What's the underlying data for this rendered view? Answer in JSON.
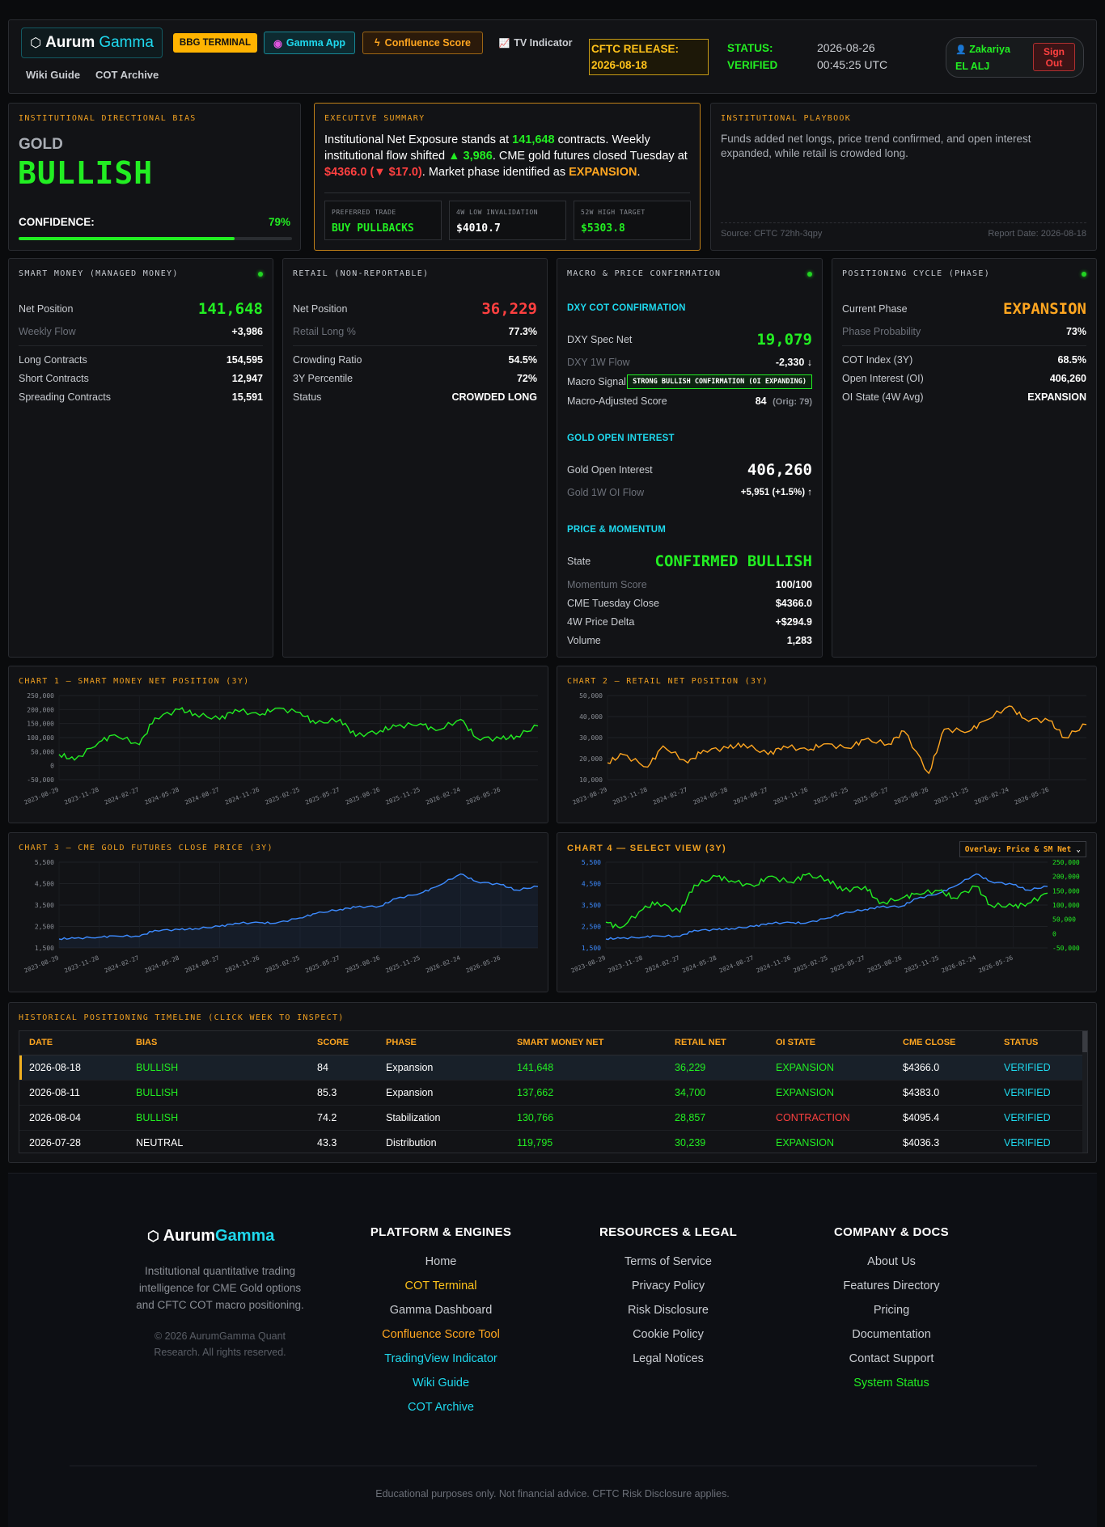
{
  "header": {
    "logo_a": "Aurum",
    "logo_b": "Gamma",
    "nav": [
      "BBG TERMINAL",
      "Gamma App",
      "Confluence Score",
      "TV Indicator"
    ],
    "links": [
      "Wiki Guide",
      "COT Archive"
    ],
    "cftc_label": "CFTC RELEASE:",
    "cftc_date": "2026-08-18",
    "status_label": "STATUS:",
    "status_value": "VERIFIED",
    "date": "2026-08-26",
    "time": "00:45:25 UTC",
    "user_first": "Zakariya",
    "user_last": "EL ALJ",
    "signout_1": "Sign",
    "signout_2": "Out"
  },
  "bias": {
    "title": "INSTITUTIONAL DIRECTIONAL BIAS",
    "asset": "GOLD",
    "value": "BULLISH",
    "confidence_label": "CONFIDENCE:",
    "confidence": "79%",
    "confidence_frac": 0.79
  },
  "summary": {
    "title": "EXECUTIVE SUMMARY",
    "t1": "Institutional Net Exposure stands at ",
    "net": "141,648",
    "t2": " contracts. Weekly institutional flow shifted ",
    "flow": "▲ 3,986",
    "t3": ". CME gold futures closed Tuesday at ",
    "close": "$4366.0 (▼ $17.0)",
    "t4": ". Market phase identified as ",
    "phase": "EXPANSION",
    "t5": ".",
    "boxes": [
      {
        "label": "PREFERRED TRADE",
        "value": "BUY PULLBACKS"
      },
      {
        "label": "4W LOW INVALIDATION",
        "value": "$4010.7"
      },
      {
        "label": "52W HIGH TARGET",
        "value": "$5303.8"
      }
    ]
  },
  "playbook": {
    "title": "INSTITUTIONAL PLAYBOOK",
    "text": "Funds added net longs, price trend confirmed, and open interest expanded, while retail is crowded long.",
    "source": "Source: CFTC 72hh-3qpy",
    "report": "Report Date: 2026-08-18"
  },
  "smart": {
    "title": "SMART MONEY (MANAGED MONEY)",
    "net_label": "Net Position",
    "net": "141,648",
    "flow_label": "Weekly Flow",
    "flow": "+3,986",
    "rows": [
      {
        "k": "Long Contracts",
        "v": "154,595"
      },
      {
        "k": "Short Contracts",
        "v": "12,947"
      },
      {
        "k": "Spreading Contracts",
        "v": "15,591"
      }
    ]
  },
  "retail": {
    "title": "RETAIL (NON-REPORTABLE)",
    "net_label": "Net Position",
    "net": "36,229",
    "long_label": "Retail Long %",
    "long": "77.3%",
    "rows": [
      {
        "k": "Crowding Ratio",
        "v": "54.5%"
      },
      {
        "k": "3Y Percentile",
        "v": "72%"
      },
      {
        "k": "Status",
        "v": "CROWDED LONG"
      }
    ]
  },
  "macro": {
    "title": "MACRO & PRICE CONFIRMATION",
    "dxy_title": "DXY COT CONFIRMATION",
    "dxy_net_label": "DXY Spec Net",
    "dxy_net": "19,079",
    "dxy_flow_label": "DXY 1W Flow",
    "dxy_flow": "-2,330 ↓",
    "signal_label": "Macro Signal",
    "signal": "STRONG BULLISH CONFIRMATION (OI EXPANDING)",
    "adj_label": "Macro-Adjusted Score",
    "adj": "84",
    "adj_orig": "(Orig: 79)",
    "oi_title": "GOLD OPEN INTEREST",
    "oi_label": "Gold Open Interest",
    "oi": "406,260",
    "oi_flow_label": "Gold 1W OI Flow",
    "oi_flow": "+5,951 (+1.5%) ↑",
    "pm_title": "PRICE & MOMENTUM",
    "state_label": "State",
    "state": "CONFIRMED BULLISH",
    "rows": [
      {
        "k": "Momentum Score",
        "v": "100/100"
      },
      {
        "k": "CME Tuesday Close",
        "v": "$4366.0"
      },
      {
        "k": "4W Price Delta",
        "v": "+$294.9"
      },
      {
        "k": "Volume",
        "v": "1,283"
      }
    ]
  },
  "cycle": {
    "title": "POSITIONING CYCLE (PHASE)",
    "phase_label": "Current Phase",
    "phase": "EXPANSION",
    "prob_label": "Phase Probability",
    "prob": "73%",
    "rows": [
      {
        "k": "COT Index (3Y)",
        "v": "68.5%"
      },
      {
        "k": "Open Interest (OI)",
        "v": "406,260"
      },
      {
        "k": "OI State (4W Avg)",
        "v": "EXPANSION"
      }
    ]
  },
  "chart_data": [
    {
      "type": "line",
      "title": "CHART 1 — SMART MONEY NET POSITION (3Y)",
      "ylim": [
        -50000,
        250000
      ],
      "ytick_labels": [
        "250,000",
        "200,000",
        "150,000",
        "100,000",
        "50,000",
        "0",
        "-50,000"
      ],
      "xtick_labels": [
        "2023-08-29",
        "2023-11-28",
        "2024-02-27",
        "2024-05-28",
        "2024-08-27",
        "2024-11-26",
        "2025-02-25",
        "2025-05-27",
        "2025-08-26",
        "2025-11-25",
        "2026-02-24",
        "2026-05-26"
      ],
      "x": [
        "2023-08-29",
        "2023-10-03",
        "2023-11-28",
        "2024-01-02",
        "2024-02-27",
        "2024-04-02",
        "2024-05-28",
        "2024-07-02",
        "2024-08-27",
        "2024-10-01",
        "2024-11-26",
        "2024-12-31",
        "2025-02-25",
        "2025-04-01",
        "2025-05-27",
        "2025-07-01",
        "2025-08-26",
        "2025-09-30",
        "2025-11-25",
        "2025-12-30",
        "2026-02-24",
        "2026-03-31",
        "2026-05-26",
        "2026-06-30",
        "2026-08-18"
      ],
      "series": [
        {
          "color": "#22ee22",
          "values": [
            40000,
            20000,
            85000,
            110000,
            75000,
            170000,
            200000,
            185000,
            165000,
            200000,
            180000,
            205000,
            190000,
            150000,
            165000,
            105000,
            125000,
            140000,
            150000,
            125000,
            165000,
            100000,
            95000,
            105000,
            141648
          ]
        }
      ]
    },
    {
      "type": "line",
      "title": "CHART 2 — RETAIL NET POSITION (3Y)",
      "ylim": [
        10000,
        50000
      ],
      "ytick_labels": [
        "50,000",
        "40,000",
        "30,000",
        "20,000",
        "10,000"
      ],
      "xtick_labels": [
        "2023-08-29",
        "2023-11-28",
        "2024-02-27",
        "2024-05-28",
        "2024-08-27",
        "2024-11-26",
        "2025-02-25",
        "2025-05-27",
        "2025-08-26",
        "2025-11-25",
        "2026-02-24",
        "2026-05-26"
      ],
      "x": [
        "2023-08-29",
        "2023-10-03",
        "2023-11-28",
        "2024-01-02",
        "2024-02-27",
        "2024-04-02",
        "2024-05-28",
        "2024-07-02",
        "2024-08-27",
        "2024-10-01",
        "2024-11-26",
        "2024-12-31",
        "2025-02-25",
        "2025-04-01",
        "2025-05-27",
        "2025-07-01",
        "2025-08-26",
        "2025-09-30",
        "2025-11-25",
        "2025-12-30",
        "2026-02-24",
        "2026-03-31",
        "2026-05-26",
        "2026-06-30",
        "2026-08-18"
      ],
      "series": [
        {
          "color": "#ffa620",
          "values": [
            18000,
            22000,
            16000,
            26000,
            18000,
            24000,
            25000,
            27000,
            22000,
            26000,
            24000,
            27000,
            25000,
            29000,
            27000,
            33000,
            13000,
            34000,
            33000,
            38000,
            45000,
            39000,
            38000,
            30000,
            36229
          ]
        }
      ]
    },
    {
      "type": "area",
      "title": "CHART 3 — CME GOLD FUTURES CLOSE PRICE (3Y)",
      "ylim": [
        1500,
        5500
      ],
      "ytick_labels": [
        "5,500",
        "4,500",
        "3,500",
        "2,500",
        "1,500"
      ],
      "xtick_labels": [
        "2023-08-29",
        "2023-11-28",
        "2024-02-27",
        "2024-05-28",
        "2024-08-27",
        "2024-11-26",
        "2025-02-25",
        "2025-05-27",
        "2025-08-26",
        "2025-11-25",
        "2026-02-24",
        "2026-05-26"
      ],
      "x": [
        "2023-08-29",
        "2023-10-03",
        "2023-11-28",
        "2024-01-02",
        "2024-02-27",
        "2024-04-02",
        "2024-05-28",
        "2024-07-02",
        "2024-08-27",
        "2024-10-01",
        "2024-11-26",
        "2024-12-31",
        "2025-02-25",
        "2025-04-01",
        "2025-05-27",
        "2025-07-01",
        "2025-08-26",
        "2025-09-30",
        "2025-11-25",
        "2025-12-30",
        "2026-02-24",
        "2026-03-31",
        "2026-05-26",
        "2026-06-30",
        "2026-08-18"
      ],
      "series": [
        {
          "color": "#3d8bff",
          "values": [
            1920,
            1950,
            2000,
            2060,
            2040,
            2320,
            2350,
            2400,
            2500,
            2650,
            2680,
            2650,
            2900,
            3100,
            3300,
            3400,
            3450,
            3800,
            4050,
            4350,
            4950,
            4600,
            4450,
            4200,
            4366
          ]
        }
      ]
    },
    {
      "type": "line",
      "title": "CHART 4 — SELECT VIEW (3Y)",
      "overlay": "Overlay: Price & SM Net",
      "ylim_left": [
        1500,
        5500
      ],
      "ylim_right": [
        -50000,
        250000
      ],
      "ytick_left": [
        "5,500",
        "4,500",
        "3,500",
        "2,500",
        "1,500"
      ],
      "ytick_right": [
        "250,000",
        "200,000",
        "150,000",
        "100,000",
        "50,000",
        "0",
        "-50,000"
      ],
      "xtick_labels": [
        "2023-08-29",
        "2023-11-28",
        "2024-02-27",
        "2024-05-28",
        "2024-08-27",
        "2024-11-26",
        "2025-02-25",
        "2025-05-27",
        "2025-08-26",
        "2025-11-25",
        "2026-02-24",
        "2026-05-26"
      ],
      "x": [
        "2023-08-29",
        "2023-10-03",
        "2023-11-28",
        "2024-01-02",
        "2024-02-27",
        "2024-04-02",
        "2024-05-28",
        "2024-07-02",
        "2024-08-27",
        "2024-10-01",
        "2024-11-26",
        "2024-12-31",
        "2025-02-25",
        "2025-04-01",
        "2025-05-27",
        "2025-07-01",
        "2025-08-26",
        "2025-09-30",
        "2025-11-25",
        "2025-12-30",
        "2026-02-24",
        "2026-03-31",
        "2026-05-26",
        "2026-06-30",
        "2026-08-18"
      ],
      "series": [
        {
          "color": "#3d8bff",
          "values": [
            1920,
            1950,
            2000,
            2060,
            2040,
            2320,
            2350,
            2400,
            2500,
            2650,
            2680,
            2650,
            2900,
            3100,
            3300,
            3400,
            3450,
            3800,
            4050,
            4350,
            4950,
            4600,
            4450,
            4200,
            4366
          ]
        },
        {
          "color": "#22ee22",
          "values": [
            40000,
            20000,
            85000,
            110000,
            75000,
            170000,
            200000,
            185000,
            165000,
            200000,
            180000,
            205000,
            190000,
            150000,
            165000,
            105000,
            125000,
            140000,
            150000,
            125000,
            165000,
            100000,
            95000,
            105000,
            141648
          ]
        }
      ]
    }
  ],
  "timeline": {
    "title": "HISTORICAL POSITIONING TIMELINE (CLICK WEEK TO INSPECT)",
    "columns": [
      "DATE",
      "BIAS",
      "SCORE",
      "PHASE",
      "SMART MONEY NET",
      "RETAIL NET",
      "OI STATE",
      "CME CLOSE",
      "STATUS"
    ],
    "rows": [
      {
        "date": "2026-08-18",
        "bias": "BULLISH",
        "score": "84",
        "phase": "Expansion",
        "sm": "141,648",
        "retail": "36,229",
        "oi": "EXPANSION",
        "close": "$4366.0",
        "status": "VERIFIED"
      },
      {
        "date": "2026-08-11",
        "bias": "BULLISH",
        "score": "85.3",
        "phase": "Expansion",
        "sm": "137,662",
        "retail": "34,700",
        "oi": "EXPANSION",
        "close": "$4383.0",
        "status": "VERIFIED"
      },
      {
        "date": "2026-08-04",
        "bias": "BULLISH",
        "score": "74.2",
        "phase": "Stabilization",
        "sm": "130,766",
        "retail": "28,857",
        "oi": "CONTRACTION",
        "close": "$4095.4",
        "status": "VERIFIED"
      },
      {
        "date": "2026-07-28",
        "bias": "NEUTRAL",
        "score": "43.3",
        "phase": "Distribution",
        "sm": "119,795",
        "retail": "30,239",
        "oi": "EXPANSION",
        "close": "$4036.3",
        "status": "VERIFIED"
      }
    ]
  },
  "footer": {
    "logo_a": "Aurum",
    "logo_b": "Gamma",
    "tagline": "Institutional quantitative trading intelligence for CME Gold options and CFTC COT macro positioning.",
    "copyright": "© 2026 AurumGamma Quant Research. All rights reserved.",
    "col1_title": "PLATFORM & ENGINES",
    "col1": [
      "Home",
      "COT Terminal",
      "Gamma Dashboard",
      "Confluence Score Tool",
      "TradingView Indicator",
      "Wiki Guide",
      "COT Archive"
    ],
    "col2_title": "RESOURCES & LEGAL",
    "col2": [
      "Terms of Service",
      "Privacy Policy",
      "Risk Disclosure",
      "Cookie Policy",
      "Legal Notices"
    ],
    "col3_title": "COMPANY & DOCS",
    "col3": [
      "About Us",
      "Features Directory",
      "Pricing",
      "Documentation",
      "Contact Support",
      "System Status"
    ],
    "disclaimer": "Educational purposes only. Not financial advice. CFTC Risk Disclosure applies."
  },
  "colors": {
    "accent": "#ffa620",
    "green": "#22ee22",
    "red": "#ff4040",
    "cyan": "#1fd9ee",
    "blue": "#3d8bff"
  }
}
